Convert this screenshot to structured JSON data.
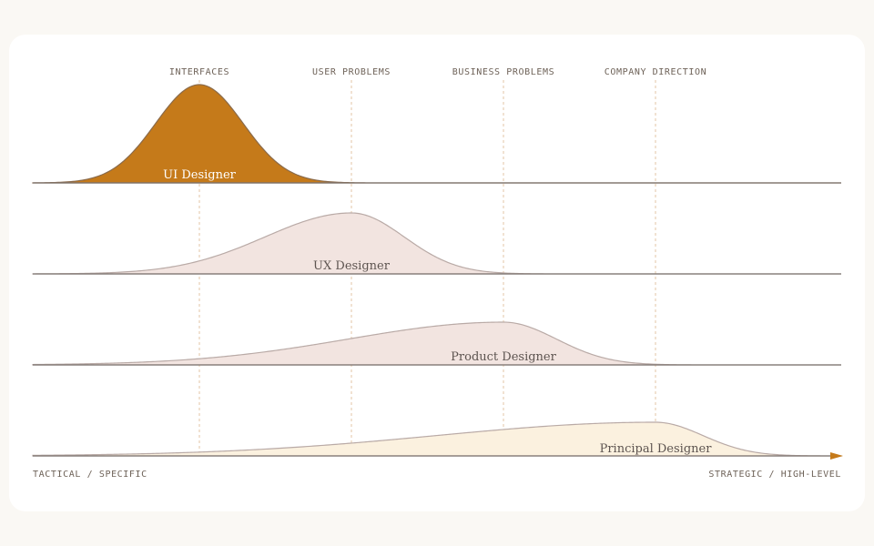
{
  "columns": [
    "INTERFACES",
    "USER PROBLEMS",
    "BUSINESS PROBLEMS",
    "COMPANY DIRECTION"
  ],
  "roles": [
    {
      "label": "UI Designer",
      "fill": "#c57a1a",
      "stroke": "#8a6a4a",
      "text_color": "#ffffff"
    },
    {
      "label": "UX Designer",
      "fill": "#f2e4e0",
      "stroke": "#b9aaa6",
      "text_color": "#5d5450"
    },
    {
      "label": "Product Designer",
      "fill": "#f2e4e0",
      "stroke": "#b9aaa6",
      "text_color": "#5d5450"
    },
    {
      "label": "Principal Designer",
      "fill": "#fbf1df",
      "stroke": "#b9aaa6",
      "text_color": "#5d5450"
    }
  ],
  "axis": {
    "left_label": "TACTICAL / SPECIFIC",
    "right_label": "STRATEGIC / HIGH-LEVEL",
    "arrow_color": "#c57a1a"
  },
  "colors": {
    "baseline": "#7d7470",
    "guide": "#e3c6a6",
    "column_text": "#6e6258"
  }
}
